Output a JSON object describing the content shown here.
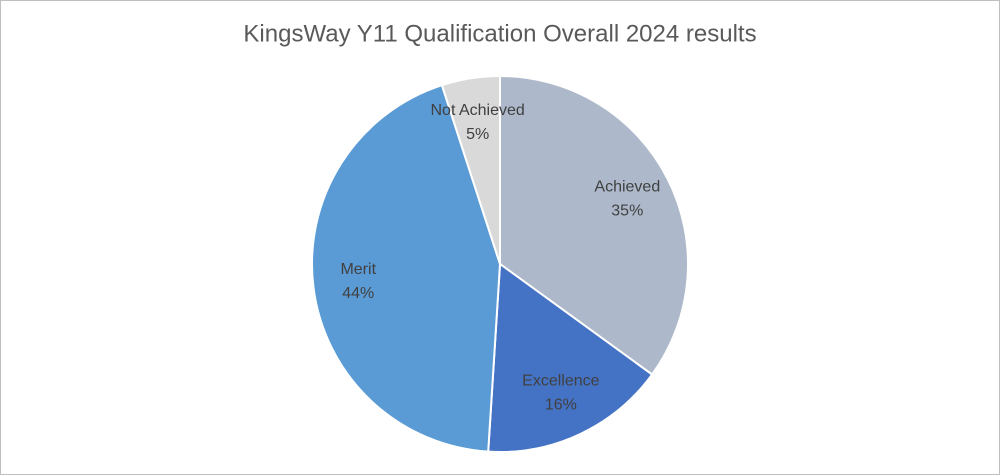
{
  "chart_data": {
    "type": "pie",
    "title": "KingsWay Y11 Qualification Overall 2024 results",
    "categories": [
      "Achieved",
      "Excellence",
      "Merit",
      "Not Achieved"
    ],
    "values": [
      35,
      16,
      44,
      5
    ],
    "value_labels": [
      "35%",
      "16%",
      "44%",
      "5%"
    ],
    "colors": [
      "#adb9ca",
      "#4472c4",
      "#5b9bd5",
      "#d9d9d9"
    ]
  }
}
